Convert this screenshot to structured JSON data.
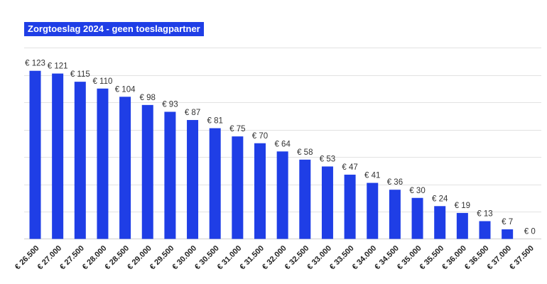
{
  "chart_data": {
    "type": "bar",
    "title": "Zorgtoeslag 2024 - geen toeslagpartner",
    "xlabel": "",
    "ylabel": "",
    "categories": [
      "€ 26.500",
      "€ 27.000",
      "€ 27.500",
      "€ 28.000",
      "€ 28.500",
      "€ 29.000",
      "€ 29.500",
      "€ 30.000",
      "€ 30.500",
      "€ 31.000",
      "€ 31.500",
      "€ 32.000",
      "€ 32.500",
      "€ 33.000",
      "€ 33.500",
      "€ 34.000",
      "€ 34.500",
      "€ 35.000",
      "€ 35.500",
      "€ 36.000",
      "€ 36.500",
      "€ 37.000",
      "€ 37.500"
    ],
    "values": [
      123,
      121,
      115,
      110,
      104,
      98,
      93,
      87,
      81,
      75,
      70,
      64,
      58,
      53,
      47,
      41,
      36,
      30,
      24,
      19,
      13,
      7,
      0
    ],
    "value_labels": [
      "€ 123",
      "€ 121",
      "€ 115",
      "€ 110",
      "€ 104",
      "€ 98",
      "€ 93",
      "€ 87",
      "€ 81",
      "€ 75",
      "€ 70",
      "€ 64",
      "€ 58",
      "€ 53",
      "€ 47",
      "€ 41",
      "€ 36",
      "€ 30",
      "€ 24",
      "€ 19",
      "€ 13",
      "€ 7",
      "€ 0"
    ],
    "ylim": [
      0,
      140
    ],
    "grid": true,
    "legend": "none",
    "bar_color": "#1f3ee6"
  }
}
